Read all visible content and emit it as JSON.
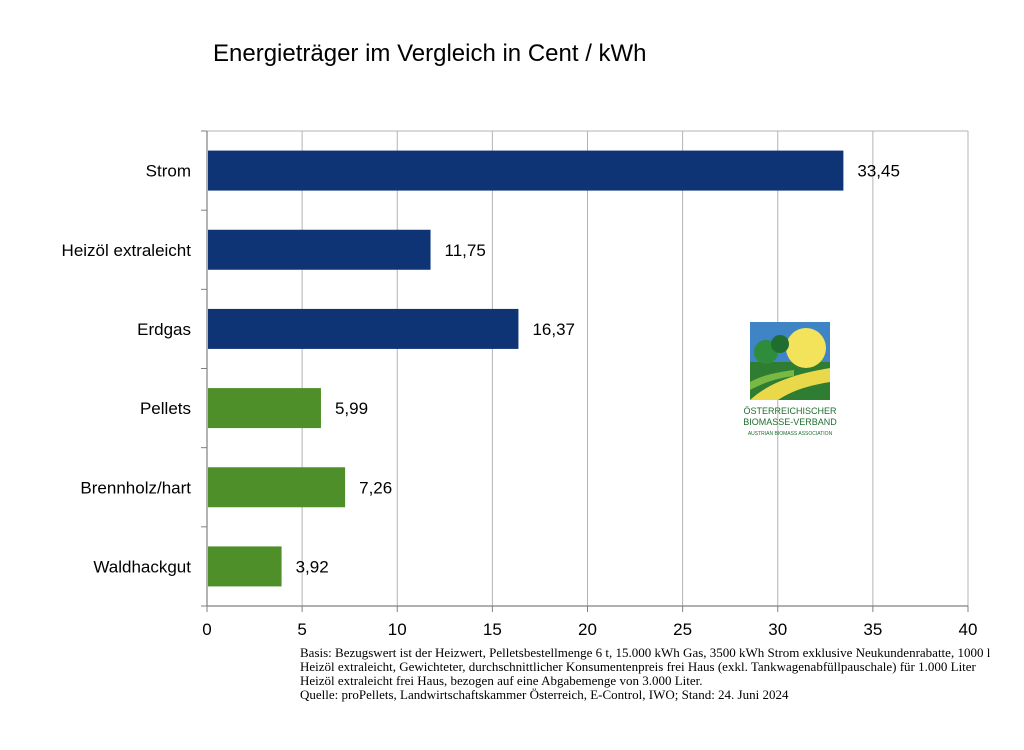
{
  "chart_data": {
    "type": "bar",
    "orientation": "horizontal",
    "title": "Energieträger im Vergleich in Cent / kWh",
    "categories": [
      "Strom",
      "Heizöl extraleicht",
      "Erdgas",
      "Pellets",
      "Brennholz/hart",
      "Waldhackgut"
    ],
    "values": [
      33.45,
      11.75,
      16.37,
      5.99,
      7.26,
      3.92
    ],
    "value_labels": [
      "33,45",
      "11,75",
      "16,37",
      "5,99",
      "7,26",
      "3,92"
    ],
    "bar_colors": [
      "#0e3476",
      "#0e3476",
      "#0e3476",
      "#4e8f2a",
      "#4e8f2a",
      "#4e8f2a"
    ],
    "xlim": [
      0,
      40
    ],
    "xticks": [
      0,
      5,
      10,
      15,
      20,
      25,
      30,
      35,
      40
    ],
    "xlabel": "",
    "ylabel": "",
    "grid": "vertical"
  },
  "logo": {
    "lines": [
      "ÖSTERREICHISCHER",
      "BIOMASSE-VERBAND",
      "AUSTRIAN BIOMASS ASSOCIATION"
    ]
  },
  "note": {
    "basis": "Basis: Bezugswert ist der Heizwert, Pelletsbestellmenge 6 t, 15.000 kWh Gas, 3500 kWh Strom exklusive Neukundenrabatte, 1000 l Heizöl extraleicht, Gewichteter, durchschnittlicher Konsumentenpreis frei Haus (exkl. Tankwagenabfüllpauschale) für 1.000 Liter Heizöl extraleicht frei Haus, bezogen auf eine Abgabemenge von 3.000 Liter.",
    "source": "Quelle: proPellets, Landwirtschaftskammer Österreich, E-Control, IWO; Stand: 24. Juni 2024"
  }
}
